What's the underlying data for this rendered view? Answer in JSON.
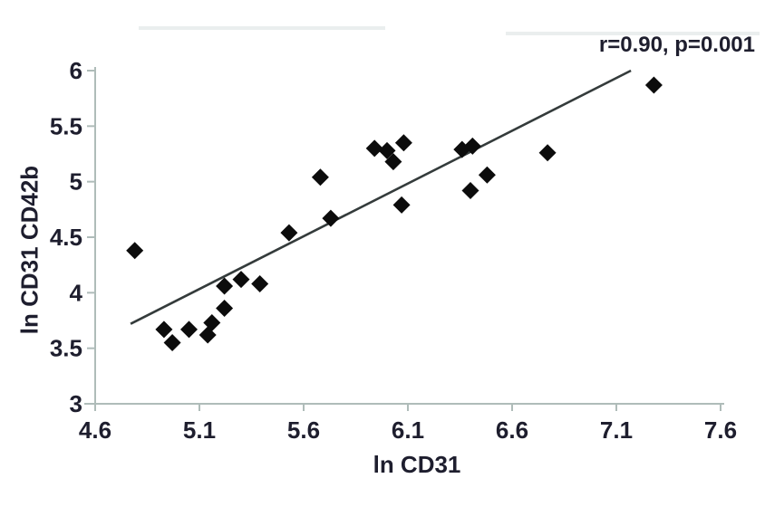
{
  "figure": {
    "annotation": "r=0.90, p=0.001",
    "x_axis_title": "ln CD31",
    "y_axis_title": "ln CD31 CD42b"
  },
  "chart_data": {
    "type": "scatter",
    "title": "",
    "xlabel": "ln CD31",
    "ylabel": "ln CD31 CD42b",
    "annotation": "r=0.90, p=0.001",
    "r_value": 0.9,
    "p_value": 0.001,
    "xlim": [
      4.6,
      7.6
    ],
    "ylim": [
      3,
      6
    ],
    "x_ticks": [
      4.6,
      5.1,
      5.6,
      6.1,
      6.6,
      7.1,
      7.6
    ],
    "x_tick_labels": [
      "4.6",
      "5.1",
      "5.6",
      "6.1",
      "6.6",
      "7.1",
      "7.6"
    ],
    "y_ticks": [
      3,
      3.5,
      4,
      4.5,
      5,
      5.5,
      6
    ],
    "y_tick_labels": [
      "3",
      "3.5",
      "4",
      "4.5",
      "5",
      "5.5",
      "6"
    ],
    "grid": false,
    "legend": "none",
    "marker": "diamond",
    "marker_color": "#0c0c0c",
    "axis_color": "#afbcb9",
    "trend_line_color": "#343b3b",
    "text_color": "#1e1e2e",
    "points": [
      [
        4.79,
        4.38
      ],
      [
        4.93,
        3.67
      ],
      [
        4.97,
        3.55
      ],
      [
        5.05,
        3.67
      ],
      [
        5.14,
        3.62
      ],
      [
        5.16,
        3.73
      ],
      [
        5.22,
        3.86
      ],
      [
        5.22,
        4.06
      ],
      [
        5.3,
        4.12
      ],
      [
        5.39,
        4.08
      ],
      [
        5.53,
        4.54
      ],
      [
        5.68,
        5.04
      ],
      [
        5.73,
        4.67
      ],
      [
        5.94,
        5.3
      ],
      [
        6.0,
        5.28
      ],
      [
        6.03,
        5.18
      ],
      [
        6.08,
        5.35
      ],
      [
        6.07,
        4.79
      ],
      [
        6.36,
        5.29
      ],
      [
        6.41,
        5.32
      ],
      [
        6.4,
        4.92
      ],
      [
        6.48,
        5.06
      ],
      [
        6.77,
        5.26
      ],
      [
        7.28,
        5.87
      ]
    ],
    "trend_line": {
      "x1": 4.77,
      "y1": 3.72,
      "x2": 7.17,
      "y2": 6.0
    }
  }
}
